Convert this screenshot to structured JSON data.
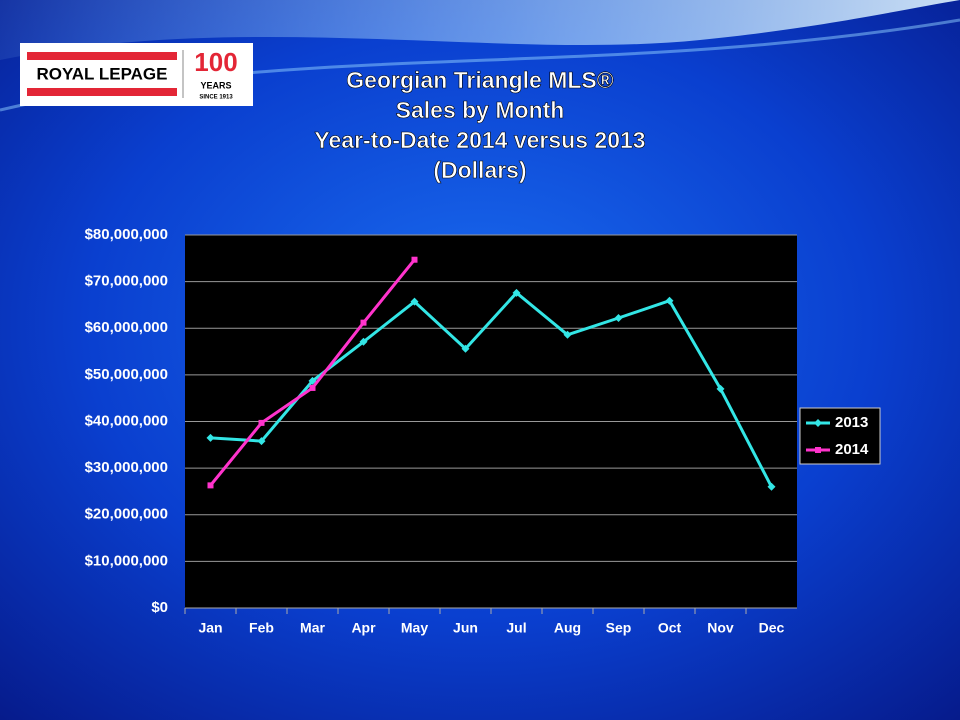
{
  "logo": {
    "brand": "ROYAL LEPAGE",
    "number": "100",
    "years": "YEARS",
    "since": "SINCE 1913"
  },
  "chart_data": {
    "type": "line",
    "title": [
      "Georgian Triangle MLS®",
      "Sales by Month",
      "Year-to-Date 2014 versus 2013",
      "(Dollars)"
    ],
    "categories": [
      "Jan",
      "Feb",
      "Mar",
      "Apr",
      "May",
      "Jun",
      "Jul",
      "Aug",
      "Sep",
      "Oct",
      "Nov",
      "Dec"
    ],
    "series": [
      {
        "name": "2013",
        "color": "#33e6e6",
        "marker": "diamond",
        "values": [
          36500000,
          35800000,
          48700000,
          57100000,
          65700000,
          55600000,
          67600000,
          58600000,
          62200000,
          65900000,
          47000000,
          26000000
        ]
      },
      {
        "name": "2014",
        "color": "#ff33cc",
        "marker": "square",
        "values": [
          26300000,
          39700000,
          47200000,
          61200000,
          74700000,
          null,
          null,
          null,
          null,
          null,
          null,
          null
        ]
      }
    ],
    "ylim": [
      0,
      80000000
    ],
    "yticks": [
      {
        "value": 0,
        "label": "$0"
      },
      {
        "value": 10000000,
        "label": "$10,000,000"
      },
      {
        "value": 20000000,
        "label": "$20,000,000"
      },
      {
        "value": 30000000,
        "label": "$30,000,000"
      },
      {
        "value": 40000000,
        "label": "$40,000,000"
      },
      {
        "value": 50000000,
        "label": "$50,000,000"
      },
      {
        "value": 60000000,
        "label": "$60,000,000"
      },
      {
        "value": 70000000,
        "label": "$70,000,000"
      },
      {
        "value": 80000000,
        "label": "$80,000,000"
      }
    ],
    "grid": true,
    "legend": "right"
  }
}
